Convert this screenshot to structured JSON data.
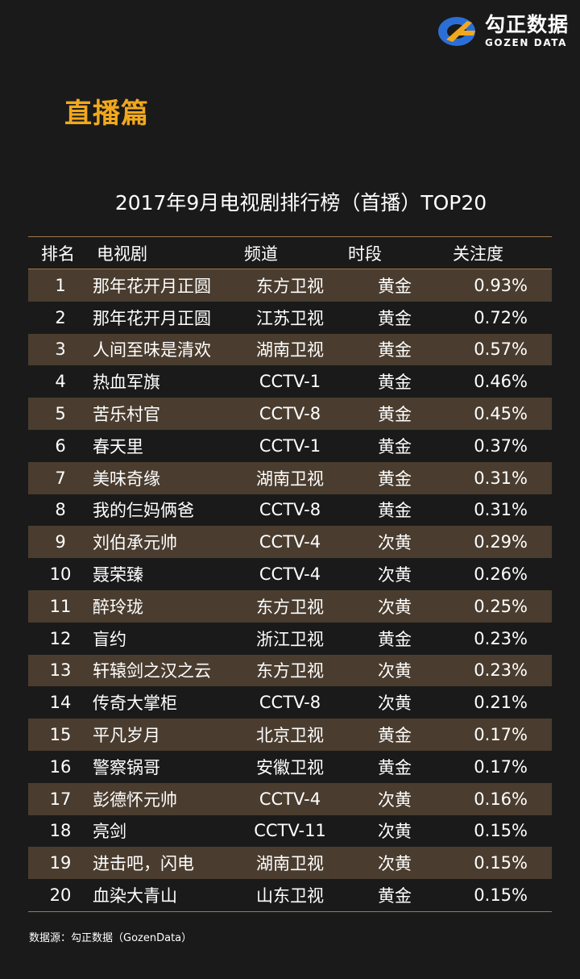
{
  "brand": {
    "name_cn": "勾正数据",
    "name_en": "GOZEN DATA",
    "colors": {
      "blue": "#2b6fd6",
      "orange": "#f2a81d"
    }
  },
  "section_title": "直播篇",
  "table_title": "2017年9月电视剧排行榜（首播）TOP20",
  "columns": [
    "排名",
    "电视剧",
    "频道",
    "时段",
    "关注度"
  ],
  "rows": [
    {
      "rank": "1",
      "name": "那年花开月正圆",
      "channel": "东方卫视",
      "slot": "黄金",
      "score": "0.93%"
    },
    {
      "rank": "2",
      "name": "那年花开月正圆",
      "channel": "江苏卫视",
      "slot": "黄金",
      "score": "0.72%"
    },
    {
      "rank": "3",
      "name": "人间至味是清欢",
      "channel": "湖南卫视",
      "slot": "黄金",
      "score": "0.57%"
    },
    {
      "rank": "4",
      "name": "热血军旗",
      "channel": "CCTV-1",
      "slot": "黄金",
      "score": "0.46%"
    },
    {
      "rank": "5",
      "name": "苦乐村官",
      "channel": "CCTV-8",
      "slot": "黄金",
      "score": "0.45%"
    },
    {
      "rank": "6",
      "name": "春天里",
      "channel": "CCTV-1",
      "slot": "黄金",
      "score": "0.37%"
    },
    {
      "rank": "7",
      "name": "美味奇缘",
      "channel": "湖南卫视",
      "slot": "黄金",
      "score": "0.31%"
    },
    {
      "rank": "8",
      "name": "我的仨妈俩爸",
      "channel": "CCTV-8",
      "slot": "黄金",
      "score": "0.31%"
    },
    {
      "rank": "9",
      "name": "刘伯承元帅",
      "channel": "CCTV-4",
      "slot": "次黄",
      "score": "0.29%"
    },
    {
      "rank": "10",
      "name": "聂荣臻",
      "channel": "CCTV-4",
      "slot": "次黄",
      "score": "0.26%"
    },
    {
      "rank": "11",
      "name": "醉玲珑",
      "channel": "东方卫视",
      "slot": "次黄",
      "score": "0.25%"
    },
    {
      "rank": "12",
      "name": "盲约",
      "channel": "浙江卫视",
      "slot": "黄金",
      "score": "0.23%"
    },
    {
      "rank": "13",
      "name": "轩辕剑之汉之云",
      "channel": "东方卫视",
      "slot": "次黄",
      "score": "0.23%"
    },
    {
      "rank": "14",
      "name": "传奇大掌柜",
      "channel": "CCTV-8",
      "slot": "次黄",
      "score": "0.21%"
    },
    {
      "rank": "15",
      "name": "平凡岁月",
      "channel": "北京卫视",
      "slot": "黄金",
      "score": "0.17%"
    },
    {
      "rank": "16",
      "name": "警察锅哥",
      "channel": "安徽卫视",
      "slot": "黄金",
      "score": "0.17%"
    },
    {
      "rank": "17",
      "name": "彭德怀元帅",
      "channel": "CCTV-4",
      "slot": "次黄",
      "score": "0.16%"
    },
    {
      "rank": "18",
      "name": "亮剑",
      "channel": "CCTV-11",
      "slot": "次黄",
      "score": "0.15%"
    },
    {
      "rank": "19",
      "name": "进击吧，闪电",
      "channel": "湖南卫视",
      "slot": "次黄",
      "score": "0.15%"
    },
    {
      "rank": "20",
      "name": "血染大青山",
      "channel": "山东卫视",
      "slot": "黄金",
      "score": "0.15%"
    }
  ],
  "source": "数据源：勾正数据（GozenData）"
}
